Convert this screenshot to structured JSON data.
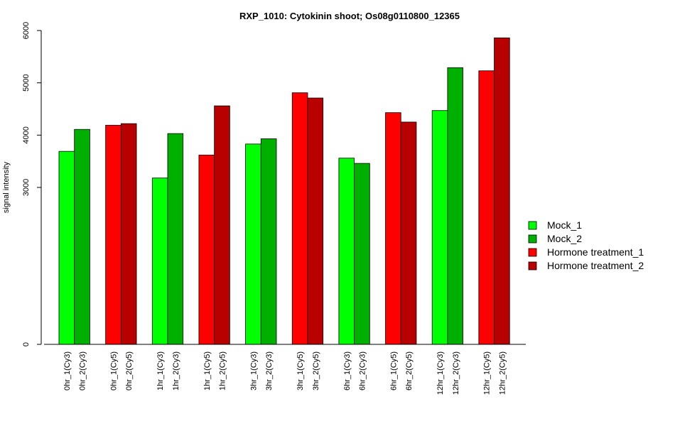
{
  "chart_data": {
    "type": "bar",
    "title": "RXP_1010: Cytokinin shoot; Os08g0110800_12365",
    "ylabel": "signal intensity",
    "xlabel": "",
    "ylim": [
      0,
      6000
    ],
    "yticks": [
      0,
      3000,
      4000,
      5000,
      6000
    ],
    "categories": [
      "0hr_1(Cy3)",
      "0hr_2(Cy3)",
      "0hr_1(Cy5)",
      "0hr_2(Cy5)",
      "1hr_1(Cy3)",
      "1hr_2(Cy3)",
      "1hr_1(Cy5)",
      "1hr_2(Cy5)",
      "3hr_1(Cy3)",
      "3hr_2(Cy3)",
      "3hr_1(Cy5)",
      "3hr_2(Cy5)",
      "6hr_1(Cy3)",
      "6hr_2(Cy3)",
      "6hr_1(Cy5)",
      "6hr_2(Cy5)",
      "12hr_1(Cy3)",
      "12hr_2(Cy3)",
      "12hr_1(Cy5)",
      "12hr_2(Cy5)"
    ],
    "values": [
      3690,
      4110,
      4190,
      4220,
      3180,
      4030,
      3620,
      4560,
      3830,
      3930,
      4810,
      4710,
      3560,
      3460,
      4430,
      4250,
      4470,
      5290,
      5230,
      5860
    ],
    "series_index": [
      0,
      1,
      2,
      3,
      0,
      1,
      2,
      3,
      0,
      1,
      2,
      3,
      0,
      1,
      2,
      3,
      0,
      1,
      2,
      3
    ],
    "series": [
      {
        "name": "Mock_1",
        "color": "#00ff00"
      },
      {
        "name": "Mock_2",
        "color": "#00b000"
      },
      {
        "name": "Hormone treatment_1",
        "color": "#ff0000"
      },
      {
        "name": "Hormone treatment_2",
        "color": "#b80000"
      }
    ],
    "legend_position": "right",
    "grid": false
  }
}
